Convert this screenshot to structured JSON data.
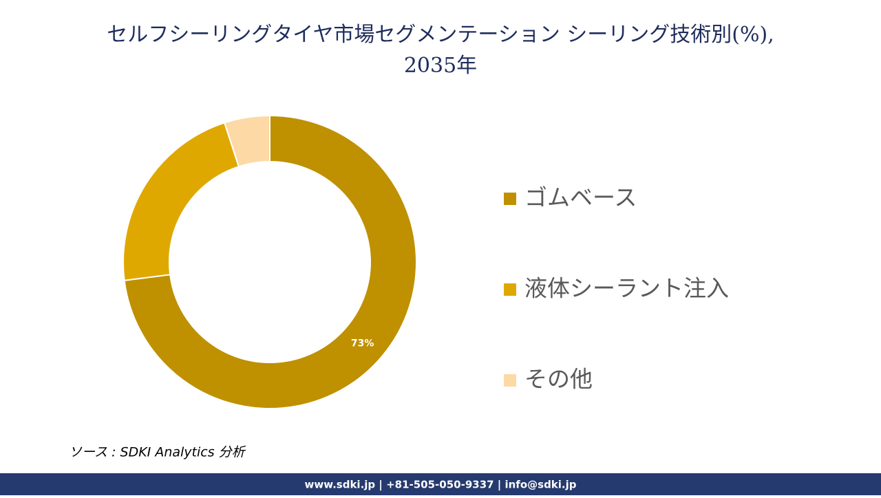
{
  "chart_data": {
    "type": "donut",
    "title": "セルフシーリングタイヤ市場セグメンテーション シーリング技術別(%),",
    "subtitle": "2035年",
    "categories": [
      "ゴムベース",
      "液体シーラント注入",
      "その他"
    ],
    "values": [
      73,
      22,
      5
    ],
    "value_labels": [
      "73%",
      null,
      null
    ],
    "colors": [
      "#bf9000",
      "#dfa800",
      "#fdd9a6"
    ],
    "legend": "right"
  },
  "source": "ソース : SDKI Analytics 分析",
  "footer": "www.sdki.jp | +81-505-050-9337 | info@sdki.jp"
}
